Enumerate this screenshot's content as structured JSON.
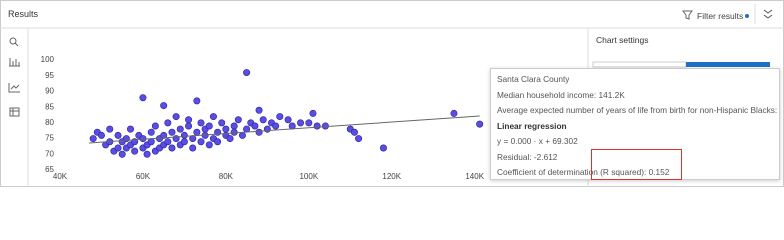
{
  "header": {
    "title": "Results",
    "filter": "Filter results"
  },
  "panel": {
    "title": "Chart settings"
  },
  "tooltip": {
    "title": "Santa Clara County",
    "lines": [
      "Median household income: 141.2K",
      "Average expected number of years of life from birth for non-Hispanic Blacks: 79.6"
    ],
    "section": "Linear regression",
    "stats": [
      "y = 0.000 · x + 69.302",
      "Residual: -2.612",
      "Coefficient of determination (R squared): 0.152"
    ]
  },
  "chart_data": {
    "type": "scatter",
    "xlim": [
      40000,
      142000
    ],
    "ylim": [
      65,
      100
    ],
    "xticks": [
      {
        "value": 40000,
        "label": "40K"
      },
      {
        "value": 60000,
        "label": "60K"
      },
      {
        "value": 80000,
        "label": "80K"
      },
      {
        "value": 100000,
        "label": "100K"
      },
      {
        "value": 120000,
        "label": "120K"
      },
      {
        "value": 140000,
        "label": "140K"
      }
    ],
    "yticks": [
      65,
      70,
      75,
      80,
      85,
      90,
      95,
      100
    ],
    "grid": false,
    "series": [
      {
        "color": "#5a4de6",
        "x": [
          48000,
          49000,
          50000,
          51000,
          52000,
          52000,
          53000,
          54000,
          54000,
          55000,
          55000,
          56000,
          56000,
          57000,
          57000,
          58000,
          58000,
          59000,
          60000,
          60000,
          60000,
          61000,
          61000,
          62000,
          62000,
          63000,
          63000,
          64000,
          64000,
          65000,
          65000,
          65000,
          66000,
          66000,
          67000,
          67000,
          68000,
          68000,
          69000,
          69000,
          70000,
          70000,
          71000,
          71000,
          72000,
          72000,
          73000,
          73000,
          74000,
          74000,
          75000,
          75000,
          76000,
          76000,
          77000,
          77000,
          78000,
          78000,
          79000,
          80000,
          80000,
          81000,
          82000,
          82000,
          83000,
          84000,
          85000,
          85000,
          86000,
          87000,
          88000,
          88000,
          89000,
          90000,
          91000,
          92000,
          93000,
          95000,
          96000,
          98000,
          100000,
          101000,
          102000,
          104000,
          110000,
          111000,
          112000,
          118000,
          135000,
          141200
        ],
        "values": [
          75,
          77,
          76,
          73,
          74,
          78,
          71,
          72,
          76,
          70,
          74,
          72,
          75,
          73,
          78,
          71,
          74,
          76,
          72,
          75,
          88,
          70,
          73,
          74,
          77,
          71,
          79,
          72,
          75,
          73,
          76,
          85.5,
          74,
          80,
          72,
          77,
          75,
          82,
          73,
          78,
          74,
          76,
          79,
          81,
          75,
          72,
          87,
          77,
          74,
          80,
          76,
          78,
          73,
          79,
          75,
          82,
          77,
          74,
          80,
          76,
          78,
          75,
          79,
          77,
          81,
          76,
          96,
          78,
          80,
          79,
          84,
          77,
          81,
          78,
          80,
          79,
          82,
          81,
          79,
          80,
          80,
          83,
          79,
          79,
          78,
          77,
          75,
          72,
          83,
          79.6
        ]
      }
    ],
    "trendline": {
      "color": "#666666",
      "x": [
        47000,
        141200
      ],
      "y": [
        73.6,
        82.2
      ]
    }
  }
}
